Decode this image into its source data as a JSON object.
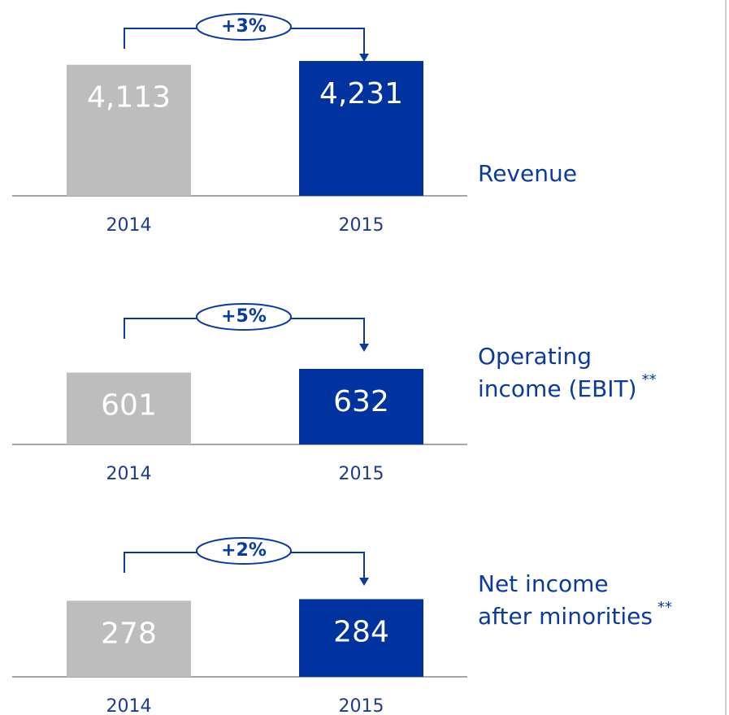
{
  "chart_data": [
    {
      "type": "bar",
      "title_lines": [
        "Revenue"
      ],
      "categories": [
        "2014",
        "2015"
      ],
      "values": [
        4113,
        4231
      ],
      "value_labels": [
        "4,113",
        "4,231"
      ],
      "colors": [
        "#bdbdbd",
        "#0033a0"
      ],
      "annotation": "+3%",
      "ylim": [
        0,
        4500
      ]
    },
    {
      "type": "bar",
      "title_lines": [
        "Operating",
        "income (EBIT)"
      ],
      "title_marker": "**",
      "categories": [
        "2014",
        "2015"
      ],
      "values": [
        601,
        632
      ],
      "colors": [
        "#bdbdbd",
        "#0033a0"
      ],
      "annotation": "+5%",
      "ylim": [
        0,
        700
      ]
    },
    {
      "type": "bar",
      "title_lines": [
        "Net income",
        "after minorities"
      ],
      "title_marker": "**",
      "categories": [
        "2014",
        "2015"
      ],
      "values": [
        278,
        284
      ],
      "colors": [
        "#bdbdbd",
        "#0033a0"
      ],
      "annotation": "+2%",
      "ylim": [
        0,
        300
      ]
    }
  ]
}
